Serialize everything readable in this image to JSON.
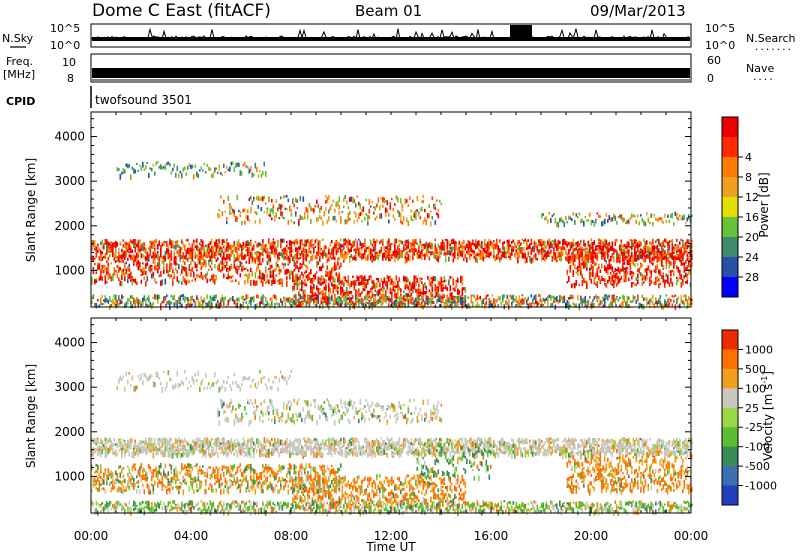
{
  "header": {
    "station": "Dome C East (fitACF)",
    "beam": "Beam 01",
    "date": "09/Mar/2013"
  },
  "panels": {
    "nsky": {
      "label": "N.Sky",
      "tick_top": "10^5",
      "tick_bottom": "10^0",
      "right_top": "10^5",
      "right_bottom": "10^0",
      "right_label": "N.Search",
      "right_dots": "......."
    },
    "freq": {
      "label_line1": "Freq.",
      "label_line2": "[MHz]",
      "tick_top": "10",
      "tick_bottom": "8",
      "right_top": "60",
      "right_bottom": "0",
      "right_label": "Nave",
      "right_dots": "...."
    },
    "cpid": {
      "label": "CPID",
      "value": "twofsound 3501"
    }
  },
  "chart_data": [
    {
      "type": "heatmap",
      "title": "",
      "ylabel": "Slant Range [km]",
      "xlabel": "",
      "ylim": [
        180,
        4550
      ],
      "yticks": [
        "1000",
        "2000",
        "3000",
        "4000"
      ],
      "colorbar": {
        "label": "Power [dB]",
        "ticks": [
          "4",
          "8",
          "12",
          "16",
          "20",
          "24",
          "28"
        ],
        "colors": [
          "#0000ff",
          "#2a4fa8",
          "#3e8a6a",
          "#66c23a",
          "#e2e000",
          "#f0a020",
          "#ff7a00",
          "#ff2a00",
          "#ee0000"
        ]
      }
    },
    {
      "type": "heatmap",
      "title": "",
      "ylabel": "Slant Range [km]",
      "xlabel": "Time UT",
      "ylim": [
        180,
        4550
      ],
      "yticks": [
        "1000",
        "2000",
        "3000",
        "4000"
      ],
      "xticks": [
        "00:00",
        "04:00",
        "08:00",
        "12:00",
        "16:00",
        "20:00",
        "00:00"
      ],
      "colorbar": {
        "label": "Velocity",
        "label_unit": "[m s",
        "label_exp": "-1",
        "label_close": "]",
        "ticks": [
          "1000",
          "500",
          "100",
          "25",
          "-25",
          "-100",
          "-500",
          "-1000"
        ],
        "colors": [
          "#2040c0",
          "#3a6fb0",
          "#3a8a5a",
          "#5cbc32",
          "#9ad84a",
          "#c8c8c0",
          "#f0a020",
          "#ff7000",
          "#ee2a00"
        ]
      }
    }
  ]
}
